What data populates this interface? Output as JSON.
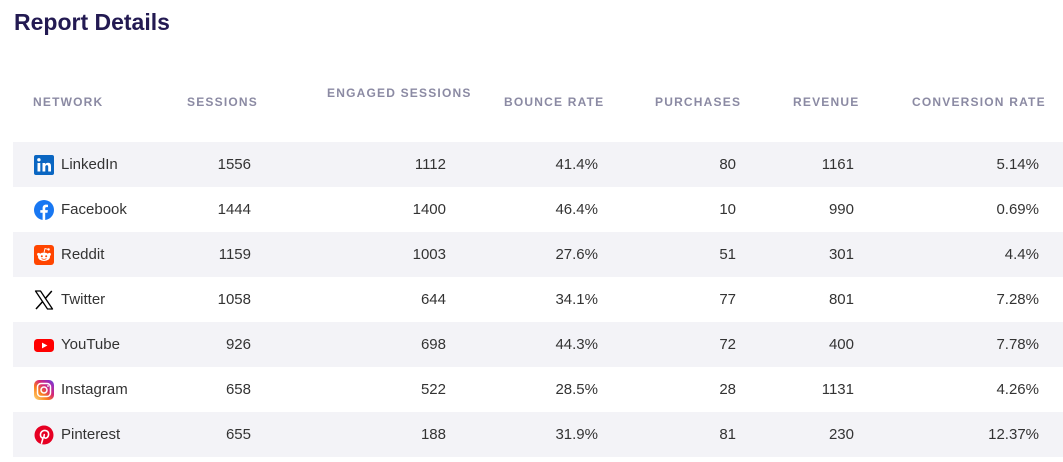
{
  "title": "Report Details",
  "headers": {
    "network": "NETWORK",
    "sessions": "SESSIONS",
    "engaged": "ENGAGED SESSIONS",
    "bounce": "BOUNCE RATE",
    "purchases": "PURCHASES",
    "revenue": "REVENUE",
    "conversion": "CONVERSION RATE"
  },
  "rows": [
    {
      "icon": "linkedin-icon",
      "network": "LinkedIn",
      "sessions": "1556",
      "engaged": "1112",
      "bounce": "41.4%",
      "purchases": "80",
      "revenue": "1161",
      "conversion": "5.14%"
    },
    {
      "icon": "facebook-icon",
      "network": "Facebook",
      "sessions": "1444",
      "engaged": "1400",
      "bounce": "46.4%",
      "purchases": "10",
      "revenue": "990",
      "conversion": "0.69%"
    },
    {
      "icon": "reddit-icon",
      "network": "Reddit",
      "sessions": "1159",
      "engaged": "1003",
      "bounce": "27.6%",
      "purchases": "51",
      "revenue": "301",
      "conversion": "4.4%"
    },
    {
      "icon": "twitter-x-icon",
      "network": "Twitter",
      "sessions": "1058",
      "engaged": "644",
      "bounce": "34.1%",
      "purchases": "77",
      "revenue": "801",
      "conversion": "7.28%"
    },
    {
      "icon": "youtube-icon",
      "network": "YouTube",
      "sessions": "926",
      "engaged": "698",
      "bounce": "44.3%",
      "purchases": "72",
      "revenue": "400",
      "conversion": "7.78%"
    },
    {
      "icon": "instagram-icon",
      "network": "Instagram",
      "sessions": "658",
      "engaged": "522",
      "bounce": "28.5%",
      "purchases": "28",
      "revenue": "1131",
      "conversion": "4.26%"
    },
    {
      "icon": "pinterest-icon",
      "network": "Pinterest",
      "sessions": "655",
      "engaged": "188",
      "bounce": "31.9%",
      "purchases": "81",
      "revenue": "230",
      "conversion": "12.37%"
    }
  ],
  "colors": {
    "title": "#231a52",
    "header": "#8b8aa3",
    "row_shade": "#f3f3f7",
    "linkedin": "#0a66c2",
    "facebook": "#1877f2",
    "reddit": "#ff4500",
    "twitter": "#000000",
    "youtube": "#ff0000",
    "pinterest": "#e60023"
  }
}
